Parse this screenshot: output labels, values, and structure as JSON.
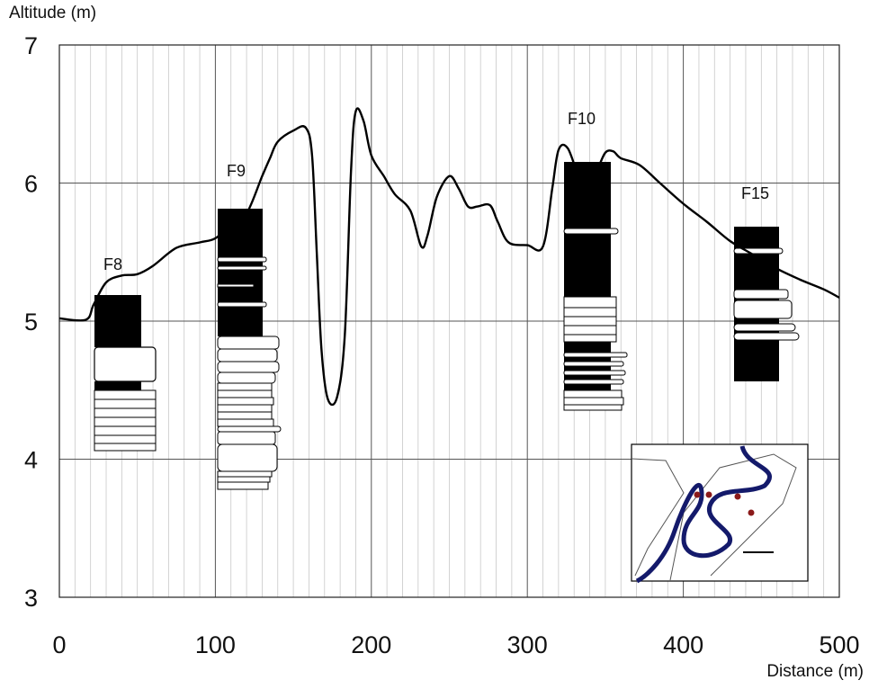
{
  "chart_data": {
    "type": "line",
    "ylabel": "Altitude (m)",
    "xlabel": "Distance (m)",
    "xlim": [
      0,
      500
    ],
    "ylim": [
      3,
      7
    ],
    "x_ticks": [
      "0",
      "100",
      "200",
      "300",
      "400",
      "500"
    ],
    "y_ticks": [
      "3",
      "4",
      "5",
      "6",
      "7"
    ],
    "grid": "major and minor vertical lines every 10 m, horizontal lines every 1 m",
    "series": [
      {
        "type": "line",
        "x": [
          0,
          17,
          22,
          30,
          40,
          50,
          60,
          75,
          90,
          100,
          110,
          120,
          130,
          135,
          140,
          150,
          158,
          162,
          165,
          168,
          172,
          178,
          183,
          187,
          190,
          195,
          200,
          208,
          215,
          225,
          232,
          236,
          242,
          250,
          256,
          262,
          268,
          276,
          281,
          288,
          300,
          310,
          316,
          320,
          326,
          334,
          340,
          345,
          350,
          355,
          360,
          372,
          385,
          400,
          415,
          430,
          445,
          460,
          475,
          490,
          500
        ],
        "y": [
          5.02,
          5.01,
          5.12,
          5.28,
          5.33,
          5.34,
          5.4,
          5.53,
          5.57,
          5.6,
          5.7,
          5.78,
          6.05,
          6.18,
          6.3,
          6.38,
          6.4,
          6.2,
          5.5,
          4.8,
          4.44,
          4.45,
          4.9,
          6.1,
          6.52,
          6.45,
          6.2,
          6.05,
          5.92,
          5.8,
          5.54,
          5.62,
          5.9,
          6.05,
          5.96,
          5.83,
          5.83,
          5.84,
          5.72,
          5.57,
          5.55,
          5.54,
          5.96,
          6.24,
          6.25,
          6.02,
          6.0,
          6.1,
          6.22,
          6.23,
          6.18,
          6.13,
          6.0,
          5.85,
          5.72,
          5.58,
          5.48,
          5.38,
          5.3,
          5.23,
          5.17
        ]
      }
    ],
    "annotations": [
      "F8",
      "F9",
      "F10",
      "F15"
    ]
  }
}
